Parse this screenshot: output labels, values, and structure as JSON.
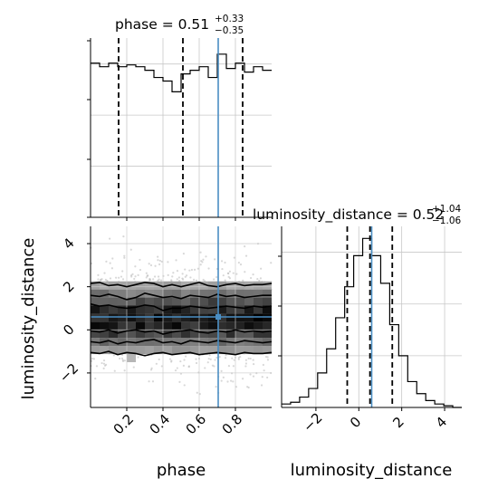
{
  "chart_data": {
    "type": "corner",
    "parameters": [
      "phase",
      "luminosity_distance"
    ],
    "truth": {
      "phase": 0.705,
      "luminosity_distance": 0.6
    },
    "panels": [
      {
        "id": "phase-hist",
        "type": "step-histogram",
        "title": {
          "base": "phase = 0.51",
          "sup": "+0.33",
          "sub": "−0.35"
        },
        "xlim": [
          0.0,
          1.0
        ],
        "bin_edges": [
          0.0,
          0.05,
          0.1,
          0.15,
          0.2,
          0.25,
          0.3,
          0.35,
          0.4,
          0.45,
          0.5,
          0.55,
          0.6,
          0.65,
          0.7,
          0.75,
          0.8,
          0.85,
          0.9,
          0.95,
          1.0
        ],
        "counts": [
          0.86,
          0.84,
          0.86,
          0.84,
          0.85,
          0.84,
          0.82,
          0.78,
          0.76,
          0.7,
          0.8,
          0.82,
          0.84,
          0.78,
          0.91,
          0.83,
          0.86,
          0.81,
          0.84,
          0.82
        ],
        "ylim": [
          0,
          1.0
        ],
        "quantiles": [
          0.155,
          0.51,
          0.84
        ],
        "truth": 0.705
      },
      {
        "id": "distance-hist",
        "type": "step-histogram",
        "title": {
          "base": "luminosity_distance = 0.52",
          "sup": "+1.04",
          "sub": "−1.06"
        },
        "xlim": [
          -3.6,
          4.8
        ],
        "bin_edges": [
          -3.6,
          -3.18,
          -2.76,
          -2.34,
          -1.92,
          -1.5,
          -1.08,
          -0.66,
          -0.24,
          0.18,
          0.6,
          1.02,
          1.44,
          1.86,
          2.28,
          2.7,
          3.12,
          3.54,
          3.96,
          4.38,
          4.8
        ],
        "counts": [
          0.02,
          0.03,
          0.06,
          0.11,
          0.2,
          0.34,
          0.52,
          0.7,
          0.88,
          0.98,
          0.88,
          0.72,
          0.48,
          0.3,
          0.15,
          0.08,
          0.04,
          0.02,
          0.01,
          0.0
        ],
        "ylim": [
          0,
          1.05
        ],
        "quantiles": [
          -0.54,
          0.52,
          1.56
        ],
        "truth": 0.6,
        "xticks": [
          -2,
          0,
          2,
          4
        ],
        "xtick_labels": [
          "−2",
          "0",
          "2",
          "4"
        ],
        "xlabel": "luminosity_distance"
      },
      {
        "id": "joint",
        "type": "2d-density",
        "xlim": [
          0.0,
          1.0
        ],
        "ylim": [
          -3.6,
          4.8
        ],
        "xticks": [
          0.2,
          0.4,
          0.6,
          0.8
        ],
        "xtick_labels": [
          "0.2",
          "0.4",
          "0.6",
          "0.8"
        ],
        "yticks": [
          -2,
          0,
          2,
          4
        ],
        "ytick_labels": [
          "−2",
          "0",
          "2",
          "4"
        ],
        "xlabel": "phase",
        "ylabel": "luminosity_distance",
        "truth": [
          0.705,
          0.6
        ],
        "contour_levels": {
          "x": [
            0.0,
            0.05,
            0.1,
            0.15,
            0.2,
            0.25,
            0.3,
            0.35,
            0.4,
            0.45,
            0.5,
            0.55,
            0.6,
            0.65,
            0.7,
            0.75,
            0.8,
            0.85,
            0.9,
            0.95,
            1.0
          ],
          "outer_upper": [
            2.15,
            2.2,
            2.05,
            2.1,
            2.0,
            2.1,
            2.2,
            2.15,
            2.0,
            2.1,
            2.0,
            2.1,
            2.2,
            2.05,
            2.0,
            2.1,
            2.15,
            2.05,
            2.1,
            2.1,
            2.15
          ],
          "mid_upper": [
            1.6,
            1.55,
            1.65,
            1.55,
            1.4,
            1.5,
            1.7,
            1.6,
            1.5,
            1.55,
            1.45,
            1.6,
            1.55,
            1.5,
            1.65,
            1.55,
            1.6,
            1.5,
            1.55,
            1.6,
            1.6
          ],
          "inner_upper": [
            1.2,
            1.1,
            1.15,
            1.05,
            1.0,
            1.05,
            1.15,
            1.1,
            0.9,
            1.0,
            1.0,
            1.1,
            1.05,
            1.0,
            1.05,
            1.1,
            1.05,
            1.0,
            1.1,
            1.05,
            1.1
          ],
          "inner_lower": [
            -0.05,
            -0.1,
            0.0,
            -0.15,
            -0.05,
            0.0,
            -0.1,
            -0.05,
            -0.2,
            -0.1,
            -0.05,
            0.0,
            -0.1,
            -0.15,
            -0.05,
            -0.1,
            0.0,
            -0.1,
            -0.05,
            -0.1,
            -0.05
          ],
          "mid_lower": [
            -0.55,
            -0.6,
            -0.5,
            -0.65,
            -0.55,
            -0.6,
            -0.5,
            -0.45,
            -0.6,
            -0.55,
            -0.65,
            -0.5,
            -0.55,
            -0.6,
            -0.5,
            -0.55,
            -0.6,
            -0.5,
            -0.55,
            -0.6,
            -0.55
          ],
          "outer_lower": [
            -1.05,
            -1.1,
            -1.0,
            -1.15,
            -1.05,
            -1.1,
            -1.2,
            -1.1,
            -1.05,
            -1.15,
            -1.1,
            -1.05,
            -1.15,
            -1.1,
            -1.05,
            -1.1,
            -1.15,
            -1.05,
            -1.1,
            -1.1,
            -1.05
          ]
        },
        "density_x_bins": 20,
        "density_y_center": 0.52,
        "density_y_sigma": 1.05
      }
    ],
    "grid": true
  }
}
